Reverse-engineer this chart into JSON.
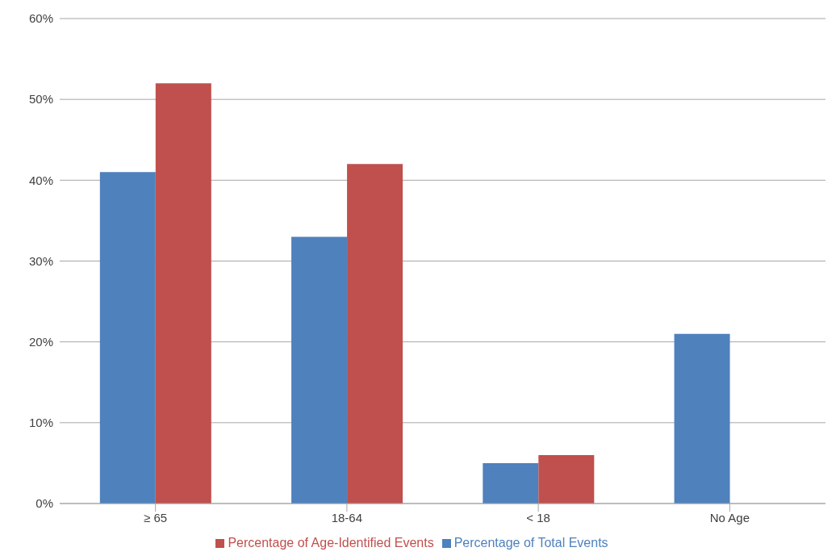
{
  "chart_data": {
    "type": "bar",
    "categories": [
      "≥ 65",
      "18-64",
      "< 18",
      "No Age"
    ],
    "series": [
      {
        "name": "Percentage of Total Events",
        "color": "#4f81bd",
        "values": [
          41,
          33,
          5,
          21
        ]
      },
      {
        "name": "Percentage of Age-Identified Events",
        "color": "#c0504d",
        "values": [
          52,
          42,
          6,
          null
        ]
      }
    ],
    "ylim": [
      0,
      60
    ],
    "yticks": [
      {
        "value": 0,
        "label": "0%"
      },
      {
        "value": 10,
        "label": "10%"
      },
      {
        "value": 20,
        "label": "20%"
      },
      {
        "value": 30,
        "label": "30%"
      },
      {
        "value": 40,
        "label": "40%"
      },
      {
        "value": 50,
        "label": "50%"
      },
      {
        "value": 60,
        "label": "60%"
      }
    ],
    "grid": "y",
    "legend": "bottom"
  }
}
